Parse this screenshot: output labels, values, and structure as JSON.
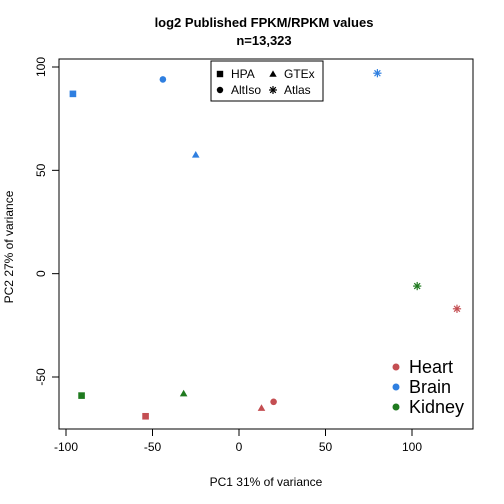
{
  "chart_data": {
    "type": "scatter",
    "title": "log2 Published FPKM/RPKM values",
    "subtitle": "n=13,323",
    "xlabel": "PC1 31% of variance",
    "ylabel": "PC2 27% of variance",
    "xlim": [
      -100,
      130
    ],
    "ylim": [
      -75,
      100
    ],
    "x_ticks": [
      -100,
      -50,
      0,
      50,
      100
    ],
    "x_tick_labels": [
      "-100",
      "-50",
      "0",
      "50",
      "100"
    ],
    "y_ticks": [
      -50,
      0,
      50,
      100
    ],
    "y_tick_labels": [
      "-50",
      "0",
      "50",
      "100"
    ],
    "grid": false,
    "colors": {
      "Heart": "#c44e52",
      "Brain": "#2f7fe0",
      "Kidney": "#1f7a1f"
    },
    "points": [
      {
        "x": -96,
        "y": 87,
        "tissue": "Brain",
        "source": "HPA"
      },
      {
        "x": -44,
        "y": 94,
        "tissue": "Brain",
        "source": "AltIso"
      },
      {
        "x": -25,
        "y": 57.5,
        "tissue": "Brain",
        "source": "GTEx"
      },
      {
        "x": 80,
        "y": 97,
        "tissue": "Brain",
        "source": "Atlas"
      },
      {
        "x": 103,
        "y": -6,
        "tissue": "Kidney",
        "source": "Atlas"
      },
      {
        "x": 126,
        "y": -17,
        "tissue": "Heart",
        "source": "Atlas"
      },
      {
        "x": -91,
        "y": -59,
        "tissue": "Kidney",
        "source": "HPA"
      },
      {
        "x": -54,
        "y": -69,
        "tissue": "Heart",
        "source": "HPA"
      },
      {
        "x": -32,
        "y": -58,
        "tissue": "Kidney",
        "source": "GTEx"
      },
      {
        "x": 13,
        "y": -65,
        "tissue": "Heart",
        "source": "GTEx"
      },
      {
        "x": 20,
        "y": -62,
        "tissue": "Heart",
        "source": "AltIso"
      }
    ],
    "shape_legend": {
      "placement": "top-center",
      "entries": [
        {
          "label": "HPA",
          "shape": "square"
        },
        {
          "label": "GTEx",
          "shape": "triangle"
        },
        {
          "label": "AltIso",
          "shape": "circle"
        },
        {
          "label": "Atlas",
          "shape": "asterisk"
        }
      ]
    },
    "color_legend": {
      "placement": "bottom-right",
      "entries": [
        {
          "label": "Heart",
          "color": "#c44e52"
        },
        {
          "label": "Brain",
          "color": "#2f7fe0"
        },
        {
          "label": "Kidney",
          "color": "#1f7a1f"
        }
      ]
    }
  }
}
